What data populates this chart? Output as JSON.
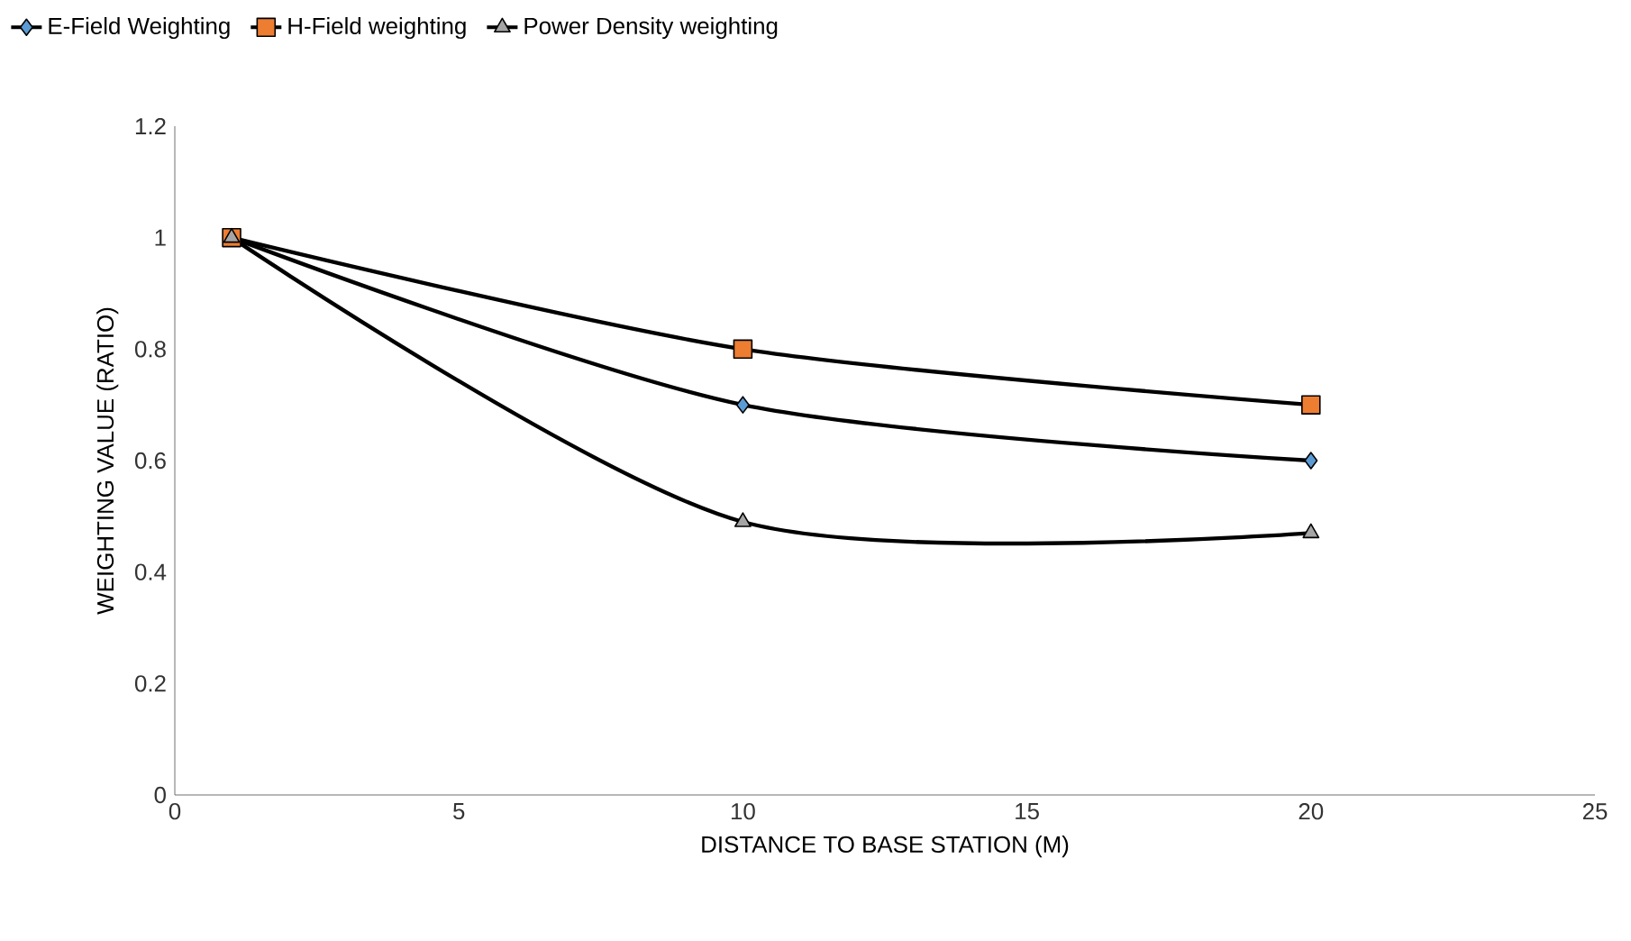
{
  "chart_data": {
    "type": "line",
    "xlabel": "DISTANCE TO BASE STATION (M)",
    "ylabel": "WEIGHTING VALUE (RATIO)",
    "xlim": [
      0,
      25
    ],
    "xticks": [
      0,
      5,
      10,
      15,
      20,
      25
    ],
    "ylim": [
      0,
      1.2
    ],
    "yticks": [
      0,
      0.2,
      0.4,
      0.6,
      0.8,
      1,
      1.2
    ],
    "legend": "top left",
    "grid": false,
    "series": [
      {
        "name": "E-Field  Weighting",
        "color": "#5b9bd5",
        "marker": "diamond",
        "x": [
          1,
          10,
          20
        ],
        "values": [
          1,
          0.7,
          0.6
        ]
      },
      {
        "name": "H-Field weighting",
        "color": "#ed7d31",
        "marker": "square",
        "x": [
          1,
          10,
          20
        ],
        "values": [
          1,
          0.8,
          0.7
        ]
      },
      {
        "name": "Power Density weighting",
        "color": "#a5a5a5",
        "marker": "triangle",
        "x": [
          1,
          10,
          20
        ],
        "values": [
          1,
          0.49,
          0.47
        ]
      }
    ]
  }
}
